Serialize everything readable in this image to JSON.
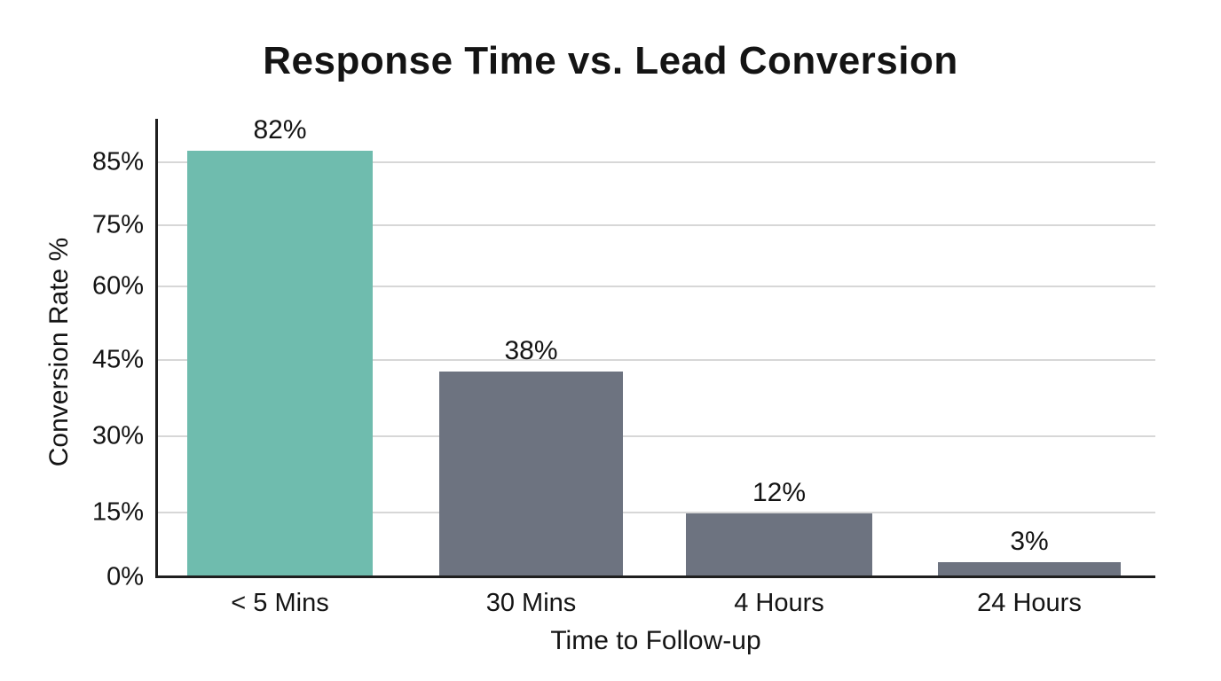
{
  "chart_data": {
    "type": "bar",
    "title": "Response Time vs. Lead Conversion",
    "xlabel": "Time to Follow-up",
    "ylabel": "Conversion Rate %",
    "categories": [
      "< 5 Mins",
      "30 Mins",
      "4 Hours",
      "24 Hours"
    ],
    "values": [
      82,
      38,
      12,
      3
    ],
    "value_labels": [
      "82%",
      "38%",
      "12%",
      "3%"
    ],
    "y_ticks": [
      "85%",
      "75%",
      "60%",
      "45%",
      "30%",
      "15%",
      "0%"
    ],
    "ylim": [
      0,
      90
    ],
    "grid": true,
    "legend": false,
    "colors": {
      "highlight_bar": "#6fbcae",
      "default_bar": "#6d7380",
      "bar_fills": [
        "#6fbcae",
        "#6d7380",
        "#6d7380",
        "#6d7380"
      ],
      "gridline": "#d7d7d7",
      "axis": "#1f1f1f",
      "text": "#141414",
      "background": "#ffffff"
    }
  }
}
